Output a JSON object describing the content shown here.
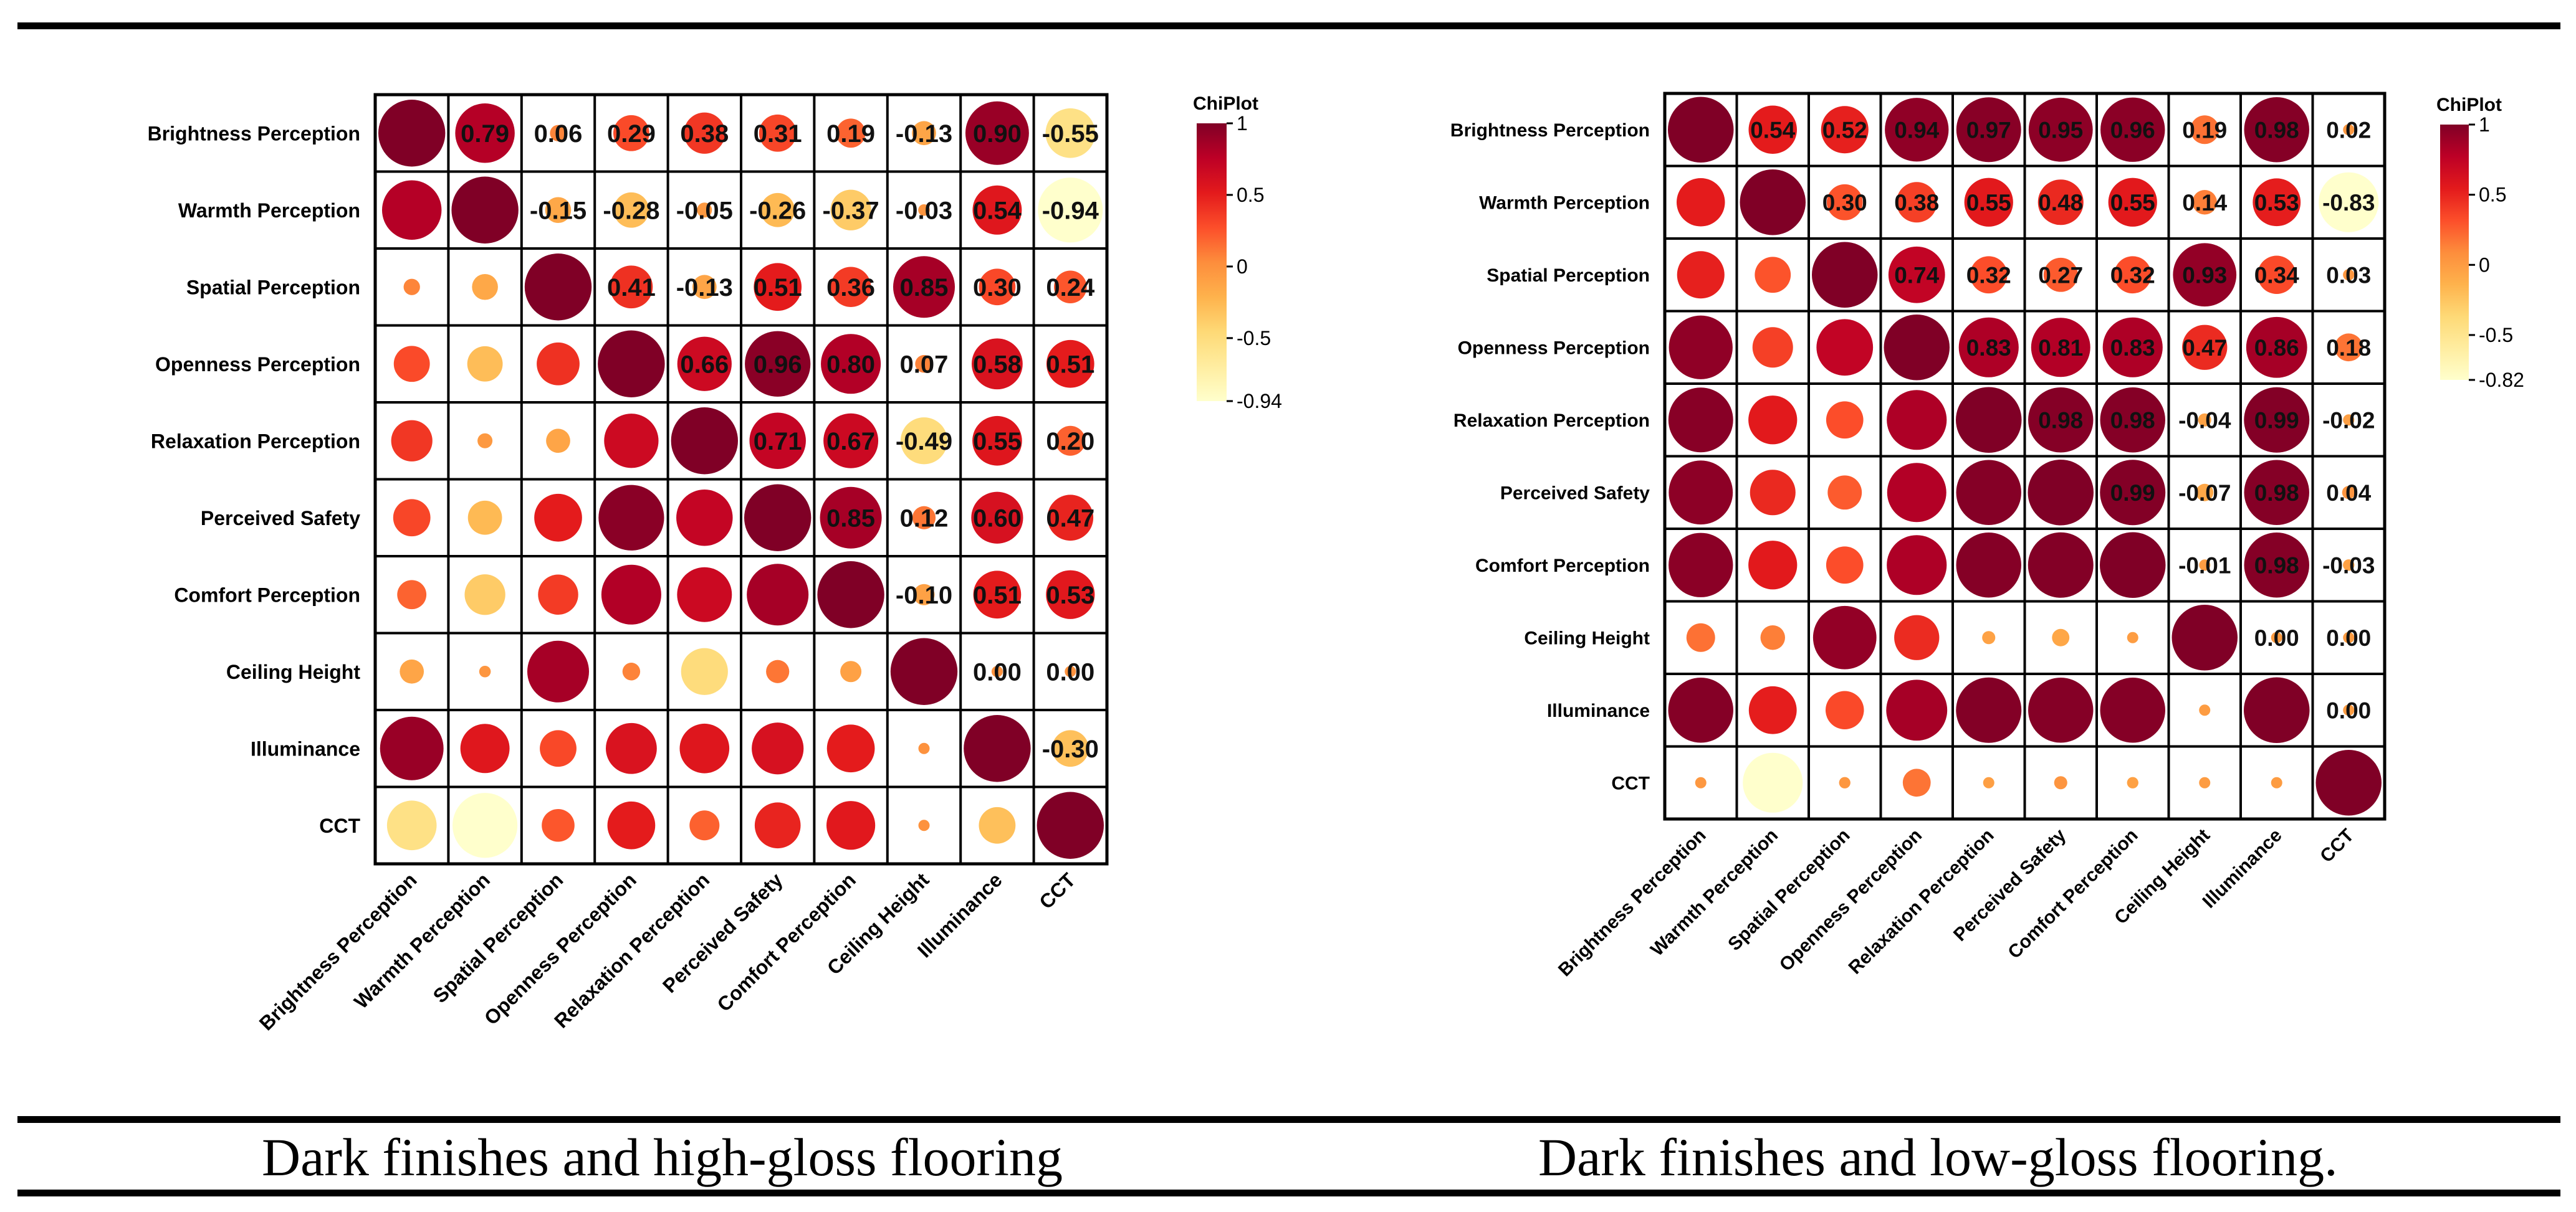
{
  "labels": [
    "Brightness Perception",
    "Warmth Perception",
    "Spatial Perception",
    "Openness Perception",
    "Relaxation Perception",
    "Perceived Safety",
    "Comfort Perception",
    "Ceiling Height",
    "Illuminance",
    "CCT"
  ],
  "captions": {
    "left": "Dark finishes and high-gloss flooring",
    "right": "Dark finishes and low-gloss flooring."
  },
  "colors": {
    "scale": [
      "#ffffcc",
      "#ffeda0",
      "#fed976",
      "#feb24c",
      "#fd8d3c",
      "#fc4e2a",
      "#e31a1c",
      "#bd0026",
      "#800026"
    ],
    "grid": "#000000"
  },
  "chart_data": [
    {
      "type": "heatmap",
      "subtype": "correlation-circle-matrix",
      "title": "Dark finishes and high-gloss flooring",
      "legend_title": "ChiPlot",
      "legend_ticks": [
        "1",
        "0.5",
        "0",
        "-0.5",
        "-0.94"
      ],
      "legend_tick_values": [
        1,
        0.5,
        0,
        -0.5,
        -0.94
      ],
      "color_range": [
        -0.94,
        1
      ],
      "matrix": [
        [
          1.0,
          0.79,
          0.06,
          0.29,
          0.38,
          0.31,
          0.19,
          -0.13,
          0.9,
          -0.55
        ],
        [
          0.79,
          1.0,
          -0.15,
          -0.28,
          -0.05,
          -0.26,
          -0.37,
          -0.03,
          0.54,
          -0.94
        ],
        [
          0.06,
          -0.15,
          1.0,
          0.41,
          -0.13,
          0.51,
          0.36,
          0.85,
          0.3,
          0.24
        ],
        [
          0.29,
          -0.28,
          0.41,
          1.0,
          0.66,
          0.96,
          0.8,
          0.07,
          0.58,
          0.51
        ],
        [
          0.38,
          -0.05,
          -0.13,
          0.66,
          1.0,
          0.71,
          0.67,
          -0.49,
          0.55,
          0.2
        ],
        [
          0.31,
          -0.26,
          0.51,
          0.96,
          0.71,
          1.0,
          0.85,
          0.12,
          0.6,
          0.47
        ],
        [
          0.19,
          -0.37,
          0.36,
          0.8,
          0.67,
          0.85,
          1.0,
          -0.1,
          0.51,
          0.53
        ],
        [
          -0.13,
          -0.03,
          0.85,
          0.07,
          -0.49,
          0.12,
          -0.1,
          1.0,
          0.0,
          0.0
        ],
        [
          0.9,
          0.54,
          0.3,
          0.58,
          0.55,
          0.6,
          0.51,
          0.0,
          1.0,
          -0.3
        ],
        [
          -0.55,
          -0.94,
          0.24,
          0.51,
          0.2,
          0.47,
          0.53,
          0.0,
          -0.3,
          1.0
        ]
      ],
      "upper_labels": [
        [
          "",
          "0.79",
          "0.06",
          "0.29",
          "0.38",
          "0.31",
          "0.19",
          "-0.13",
          "0.90",
          "-0.55"
        ],
        [
          "",
          "",
          "-0.15",
          "-0.28",
          "-0.05",
          "-0.26",
          "-0.37",
          "-0.03",
          "0.54",
          "-0.94"
        ],
        [
          "",
          "",
          "",
          "0.41",
          "-0.13",
          "0.51",
          "0.36",
          "0.85",
          "0.30",
          "0.24"
        ],
        [
          "",
          "",
          "",
          "",
          "0.66",
          "0.96",
          "0.80",
          "0.07",
          "0.58",
          "0.51"
        ],
        [
          "",
          "",
          "",
          "",
          "",
          "0.71",
          "0.67",
          "-0.49",
          "0.55",
          "0.20"
        ],
        [
          "",
          "",
          "",
          "",
          "",
          "",
          "0.85",
          "0.12",
          "0.60",
          "0.47"
        ],
        [
          "",
          "",
          "",
          "",
          "",
          "",
          "",
          "-0.10",
          "0.51",
          "0.53"
        ],
        [
          "",
          "",
          "",
          "",
          "",
          "",
          "",
          "",
          "0.00",
          "0.00"
        ],
        [
          "",
          "",
          "",
          "",
          "",
          "",
          "",
          "",
          "",
          "-0.30"
        ],
        [
          "",
          "",
          "",
          "",
          "",
          "",
          "",
          "",
          "",
          ""
        ]
      ]
    },
    {
      "type": "heatmap",
      "subtype": "correlation-circle-matrix",
      "title": "Dark finishes and low-gloss flooring.",
      "legend_title": "ChiPlot",
      "legend_ticks": [
        "1",
        "0.5",
        "0",
        "-0.5",
        "-0.82"
      ],
      "legend_tick_values": [
        1,
        0.5,
        0,
        -0.5,
        -0.82
      ],
      "color_range": [
        -0.82,
        1
      ],
      "matrix": [
        [
          1.0,
          0.54,
          0.52,
          0.94,
          0.97,
          0.95,
          0.96,
          0.19,
          0.98,
          0.02
        ],
        [
          0.54,
          1.0,
          0.3,
          0.38,
          0.55,
          0.48,
          0.55,
          0.14,
          0.53,
          -0.83
        ],
        [
          0.52,
          0.3,
          1.0,
          0.74,
          0.32,
          0.27,
          0.32,
          0.93,
          0.34,
          0.03
        ],
        [
          0.94,
          0.38,
          0.74,
          1.0,
          0.83,
          0.81,
          0.83,
          0.47,
          0.86,
          0.18
        ],
        [
          0.97,
          0.55,
          0.32,
          0.83,
          1.0,
          0.98,
          0.98,
          -0.04,
          0.99,
          -0.02
        ],
        [
          0.95,
          0.48,
          0.27,
          0.81,
          0.98,
          1.0,
          0.99,
          -0.07,
          0.98,
          0.04
        ],
        [
          0.96,
          0.55,
          0.32,
          0.83,
          0.98,
          0.99,
          1.0,
          -0.01,
          0.98,
          -0.03
        ],
        [
          0.19,
          0.14,
          0.93,
          0.47,
          -0.04,
          -0.07,
          -0.01,
          1.0,
          0.0,
          0.0
        ],
        [
          0.98,
          0.53,
          0.34,
          0.86,
          0.99,
          0.98,
          0.98,
          0.0,
          1.0,
          0.0
        ],
        [
          0.02,
          -0.83,
          0.03,
          0.18,
          -0.02,
          0.04,
          -0.03,
          0.0,
          0.0,
          1.0
        ]
      ],
      "upper_labels": [
        [
          "",
          "0.54",
          "0.52",
          "0.94",
          "0.97",
          "0.95",
          "0.96",
          "0.19",
          "0.98",
          "0.02"
        ],
        [
          "",
          "",
          "0.30",
          "0.38",
          "0.55",
          "0.48",
          "0.55",
          "0.14",
          "0.53",
          "-0.83"
        ],
        [
          "",
          "",
          "",
          "0.74",
          "0.32",
          "0.27",
          "0.32",
          "0.93",
          "0.34",
          "0.03"
        ],
        [
          "",
          "",
          "",
          "",
          "0.83",
          "0.81",
          "0.83",
          "0.47",
          "0.86",
          "0.18"
        ],
        [
          "",
          "",
          "",
          "",
          "",
          "0.98",
          "0.98",
          "-0.04",
          "0.99",
          "-0.02"
        ],
        [
          "",
          "",
          "",
          "",
          "",
          "",
          "0.99",
          "-0.07",
          "0.98",
          "0.04"
        ],
        [
          "",
          "",
          "",
          "",
          "",
          "",
          "",
          "-0.01",
          "0.98",
          "-0.03"
        ],
        [
          "",
          "",
          "",
          "",
          "",
          "",
          "",
          "",
          "0.00",
          "0.00"
        ],
        [
          "",
          "",
          "",
          "",
          "",
          "",
          "",
          "",
          "",
          "0.00"
        ],
        [
          "",
          "",
          "",
          "",
          "",
          "",
          "",
          "",
          "",
          ""
        ]
      ]
    }
  ]
}
